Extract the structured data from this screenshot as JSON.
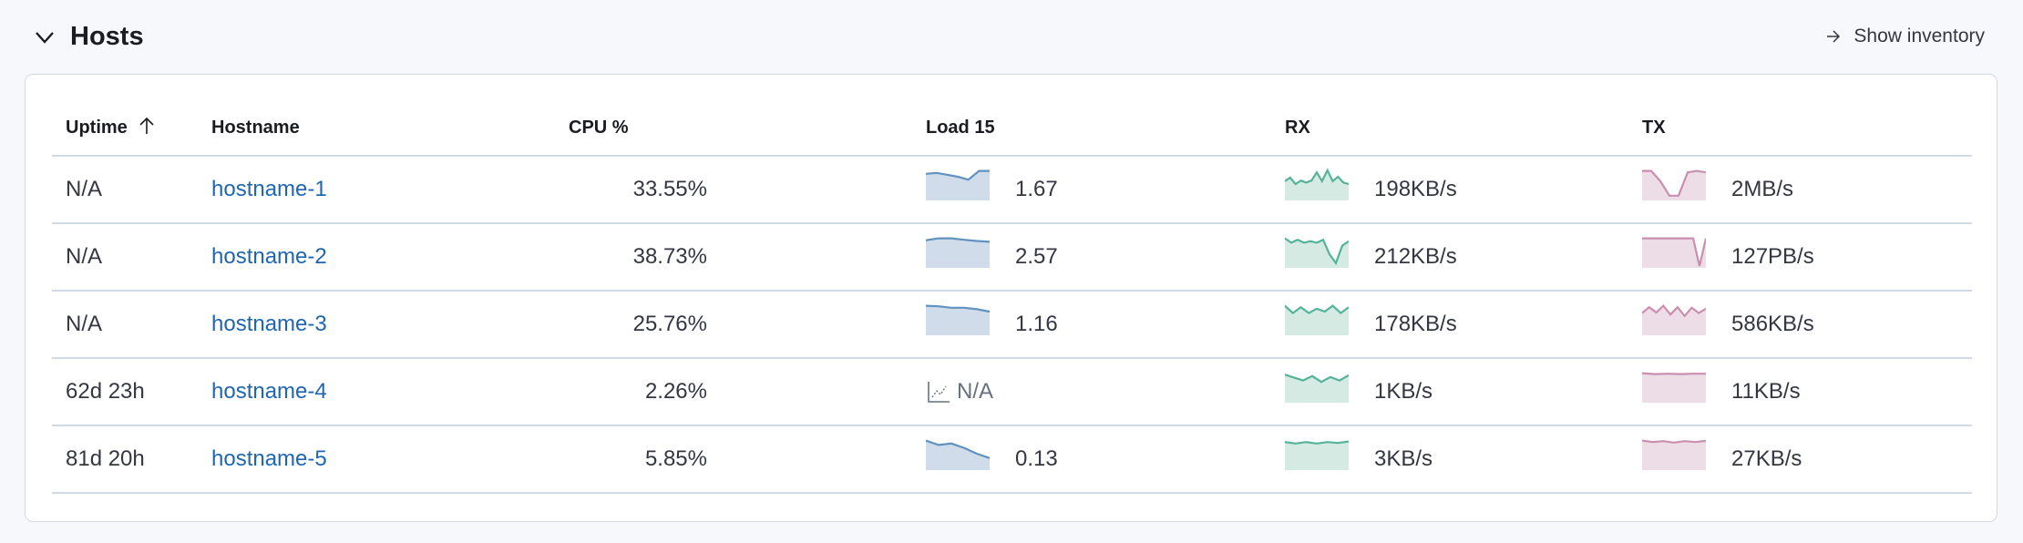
{
  "section": {
    "title": "Hosts",
    "show_inventory": "Show inventory"
  },
  "table": {
    "columns": [
      "Uptime",
      "Hostname",
      "CPU %",
      "Load 15",
      "RX",
      "TX"
    ],
    "sort": {
      "column": "Uptime",
      "direction": "ascending"
    },
    "rows": [
      {
        "uptime": "N/A",
        "hostname": "hostname-1",
        "cpu": "33.55%",
        "load": "1.67",
        "rx": "198KB/s",
        "tx": "2MB/s",
        "load_spark": [
          0.85,
          0.88,
          0.82,
          0.75,
          0.65,
          0.95,
          0.95
        ],
        "rx_spark": [
          0.6,
          0.72,
          0.5,
          0.62,
          0.55,
          0.62,
          0.9,
          0.6,
          0.97,
          0.6,
          0.75,
          0.55,
          0.5
        ],
        "tx_spark": [
          0.95,
          0.95,
          0.6,
          0.1,
          0.1,
          0.9,
          0.95,
          0.9
        ]
      },
      {
        "uptime": "N/A",
        "hostname": "hostname-2",
        "cpu": "38.73%",
        "load": "2.57",
        "rx": "212KB/s",
        "tx": "127PB/s",
        "load_spark": [
          0.88,
          0.95,
          0.95,
          0.9,
          0.86,
          0.83
        ],
        "rx_spark": [
          0.95,
          0.8,
          0.9,
          0.8,
          0.85,
          0.8,
          0.9,
          0.4,
          0.1,
          0.7,
          0.85
        ],
        "tx_spark": [
          0.95,
          0.95,
          0.95,
          0.95,
          0.95,
          0.95,
          0.95,
          0.95,
          0.95,
          0.0,
          0.95
        ]
      },
      {
        "uptime": "N/A",
        "hostname": "hostname-3",
        "cpu": "25.76%",
        "load": "1.16",
        "rx": "178KB/s",
        "tx": "586KB/s",
        "load_spark": [
          0.95,
          0.93,
          0.88,
          0.88,
          0.83,
          0.75
        ],
        "rx_spark": [
          0.95,
          0.7,
          0.9,
          0.7,
          0.85,
          0.75,
          0.95,
          0.7,
          0.9
        ],
        "tx_spark": [
          0.7,
          0.9,
          0.72,
          0.95,
          0.65,
          0.9,
          0.6,
          0.88,
          0.7,
          0.85
        ]
      },
      {
        "uptime": "62d 23h",
        "hostname": "hostname-4",
        "cpu": "2.26%",
        "load": "N/A",
        "rx": "1KB/s",
        "tx": "11KB/s",
        "load_spark": null,
        "rx_spark": [
          0.9,
          0.8,
          0.7,
          0.85,
          0.65,
          0.82,
          0.7,
          0.88
        ],
        "tx_spark": [
          0.95,
          0.92,
          0.93,
          0.92,
          0.93,
          0.93
        ]
      },
      {
        "uptime": "81d 20h",
        "hostname": "hostname-5",
        "cpu": "5.85%",
        "load": "0.13",
        "rx": "3KB/s",
        "tx": "27KB/s",
        "load_spark": [
          0.95,
          0.8,
          0.85,
          0.7,
          0.5,
          0.35
        ],
        "rx_spark": [
          0.9,
          0.85,
          0.9,
          0.85,
          0.9,
          0.87,
          0.92
        ],
        "tx_spark": [
          0.95,
          0.9,
          0.93,
          0.88,
          0.93,
          0.9,
          0.94
        ]
      }
    ]
  },
  "colors": {
    "load_line": "#6092c0",
    "load_fill": "#d1dcea",
    "rx_line": "#54b399",
    "rx_fill": "#d4eae2",
    "tx_line": "#ca8eae",
    "tx_fill": "#ecdde6",
    "link": "#1f66b0"
  }
}
